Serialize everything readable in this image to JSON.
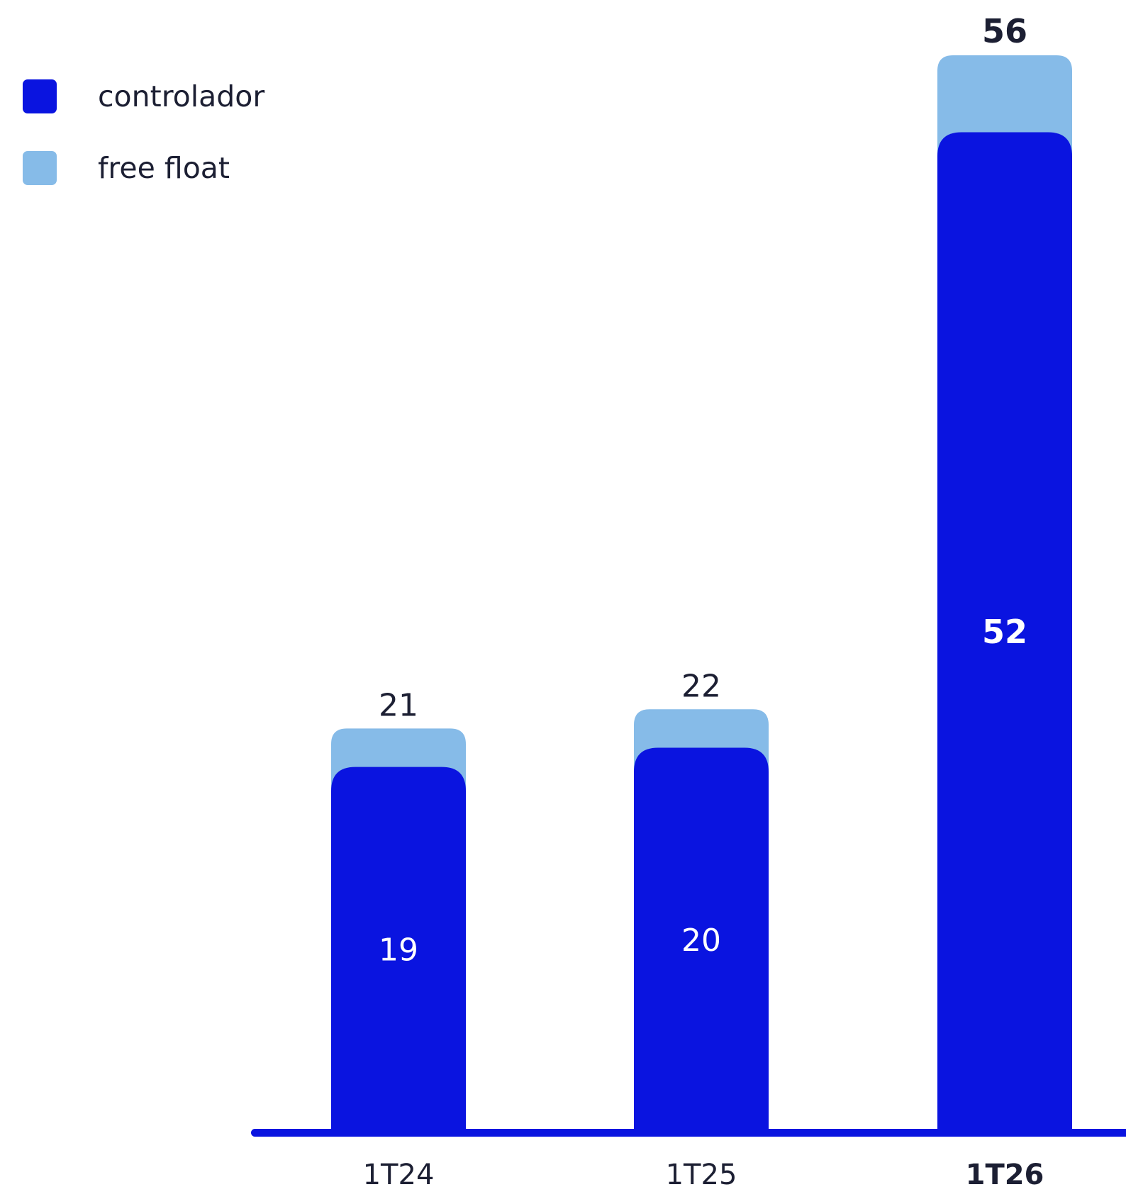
{
  "chart_data": {
    "type": "bar",
    "stacked": true,
    "categories": [
      "1T24",
      "1T25",
      "1T26"
    ],
    "series": [
      {
        "name": "controlador",
        "values": [
          19,
          20,
          52
        ],
        "color": "#0a14e0",
        "labels": [
          "19",
          "20",
          "52"
        ]
      },
      {
        "name": "free float",
        "values": [
          2,
          2,
          4
        ],
        "color": "#86bbe8"
      }
    ],
    "totals": [
      21,
      22,
      56
    ],
    "total_labels": [
      "21",
      "22",
      "56"
    ],
    "highlight_category": "1T26",
    "legend_position": "top-left",
    "grid": false,
    "ylim": [
      0,
      56
    ]
  },
  "colors": {
    "axis": "#0a14e0",
    "text": "#1c1f33",
    "inner_label": "#ffffff"
  }
}
